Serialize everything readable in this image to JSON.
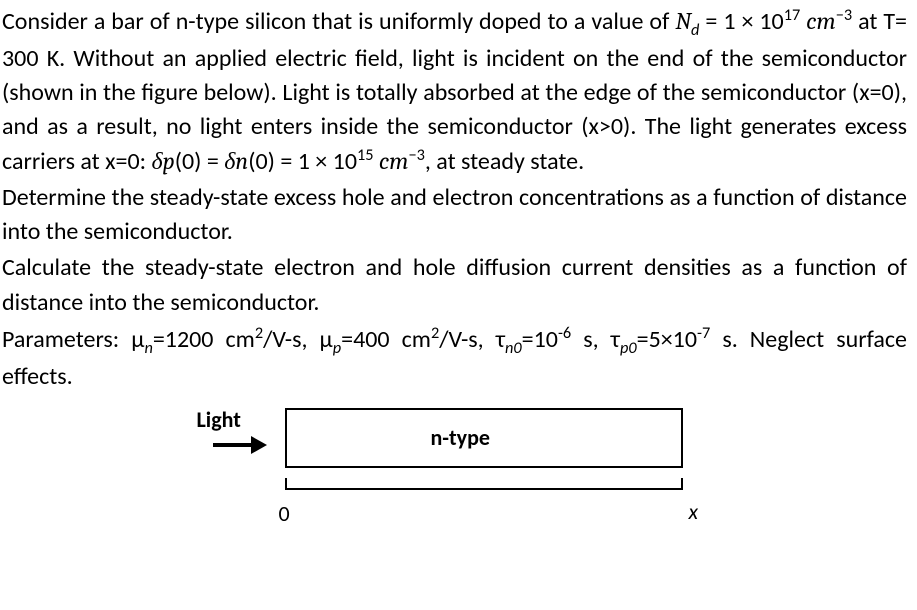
{
  "p1a": "Consider a bar of n-type silicon that is uniformly doped to a value of ",
  "Nd": "N",
  "Nd_sub": "d",
  "eq": " = ",
  "p1b": "1 × 10",
  "exp17": "17",
  "unit_cm": " cm",
  "exp_m3": "−3",
  "p1c": " at T= 300 K. Without an applied electric field, light is incident on the end of the semiconductor (shown in the figure below). Light is totally absorbed at the edge of the semiconductor (x=0), and as a result, no light enters inside the semiconductor (x>0). The light generates excess carriers at x=0: ",
  "dp": "δp",
  "zero_arg": "(0) = ",
  "dn": "δn",
  "p1d": "(0) = 1 × 10",
  "exp15": "15",
  "p1e": ", at steady state.",
  "p2": "Determine the steady-state excess hole and electron concentrations as a function of distance into the semiconductor.",
  "p3": "Calculate the steady-state electron and hole diffusion current densities as a function of distance into the semiconductor.",
  "p4a": "Parameters: μ",
  "mun_sub": "n",
  "mun_val": "=1200 cm",
  "sq": "2",
  "per_vs": "/V-s, μ",
  "mup_sub": "p",
  "mup_val": "=400 cm",
  "per_vs2": "/V-s, τ",
  "tn0_sub": "n0",
  "tn0_val": "=10",
  "exp_m6": "-6",
  "s_tau": " s, τ",
  "tp0_sub": "p0",
  "tp0_val": "=5×10",
  "exp_m7": "-7",
  "p4b": " s. Neglect surface effects.",
  "fig": {
    "light": "Light",
    "ntype": "n-type",
    "zero": "0",
    "x": "x"
  }
}
